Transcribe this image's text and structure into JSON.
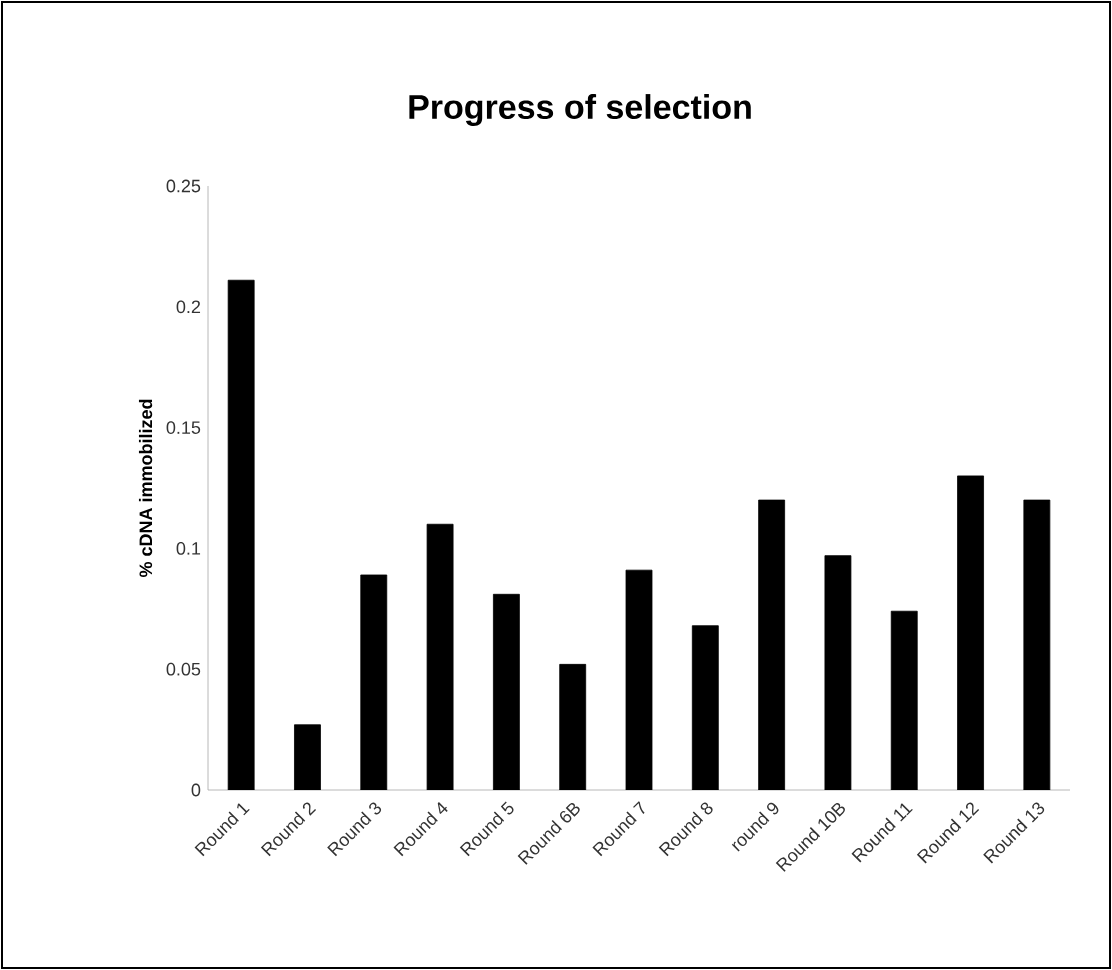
{
  "chart_data": {
    "type": "bar",
    "title": "Progress of selection",
    "ylabel": "% cDNA immobilized",
    "categories": [
      "Round 1",
      "Round 2",
      "Round 3",
      "Round 4",
      "Round 5",
      "Round 6B",
      "Round 7",
      "Round 8",
      "round 9",
      "Round 10B",
      "Round 11",
      "Round 12",
      "Round 13"
    ],
    "values": [
      0.211,
      0.027,
      0.089,
      0.11,
      0.081,
      0.052,
      0.091,
      0.068,
      0.12,
      0.097,
      0.074,
      0.13,
      0.12
    ],
    "color": "#000000",
    "ylim": [
      0,
      0.25
    ],
    "yticks": [
      0,
      0.05,
      0.1,
      0.15,
      0.2,
      0.25
    ],
    "grid": false
  }
}
